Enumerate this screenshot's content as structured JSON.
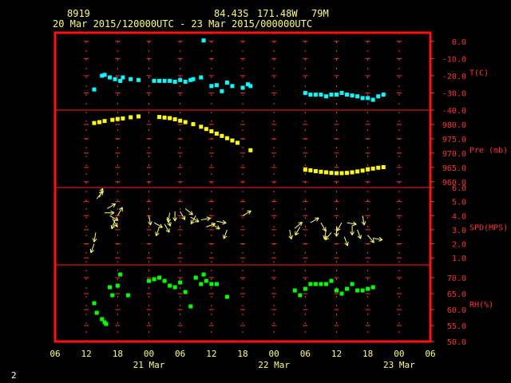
{
  "header": {
    "station": "8919",
    "lat": "84.43S",
    "lon": "171.48W",
    "elev": "79M",
    "range": "20 Mar 2015/120000UTC - 23 Mar 2015/000000UTC"
  },
  "footer": {
    "page_number": "2"
  },
  "chart_data": {
    "type": "scatter",
    "x_unit": "hours since 20 Mar 2015 06 UTC",
    "x_ticks": [
      "06",
      "12",
      "18",
      "00",
      "06",
      "12",
      "18",
      "00",
      "06",
      "12",
      "18",
      "00",
      "06"
    ],
    "x_day_labels": [
      {
        "label": "21 Mar",
        "x": 18
      },
      {
        "label": "22 Mar",
        "x": 42
      },
      {
        "label": "23 Mar",
        "x": 66
      }
    ],
    "xlim": [
      0,
      72
    ],
    "grid": true,
    "panels": [
      {
        "name": "T(C)",
        "label": "T(C)",
        "color": "#00ffff",
        "ylim": [
          -40,
          5
        ],
        "ticks": [
          "0.0",
          "-10.0",
          "-20.0",
          "-30.0",
          "-40.0"
        ],
        "tick_values": [
          0,
          -10,
          -20,
          -30,
          -40
        ],
        "points": [
          [
            7.5,
            -28
          ],
          [
            9,
            -20
          ],
          [
            9.5,
            -19.5
          ],
          [
            10.5,
            -21
          ],
          [
            11.5,
            -22
          ],
          [
            12.5,
            -23
          ],
          [
            13,
            -21
          ],
          [
            14.5,
            -22
          ],
          [
            16,
            -22.5
          ],
          [
            19,
            -23
          ],
          [
            20,
            -23
          ],
          [
            21,
            -23
          ],
          [
            22,
            -23
          ],
          [
            23,
            -23.5
          ],
          [
            24,
            -22.5
          ],
          [
            25,
            -23.5
          ],
          [
            26,
            -22.5
          ],
          [
            26.5,
            -22
          ],
          [
            28,
            -21
          ],
          [
            30,
            -26
          ],
          [
            31,
            -25.5
          ],
          [
            32,
            -29
          ],
          [
            33,
            -24
          ],
          [
            34,
            -26
          ],
          [
            36,
            -27
          ],
          [
            37,
            -25
          ],
          [
            37.5,
            -26
          ],
          [
            48,
            -30
          ],
          [
            49,
            -31
          ],
          [
            50,
            -31
          ],
          [
            51,
            -31
          ],
          [
            52,
            -32
          ],
          [
            53,
            -31
          ],
          [
            54,
            -31
          ],
          [
            55,
            -30
          ],
          [
            56,
            -31
          ],
          [
            57,
            -31.5
          ],
          [
            58,
            -32
          ],
          [
            59,
            -33
          ],
          [
            60,
            -33
          ],
          [
            61,
            -34
          ],
          [
            62,
            -32
          ],
          [
            63,
            -31
          ],
          [
            28.5,
            0.5
          ]
        ]
      },
      {
        "name": "Pre (mb)",
        "label": "Pre (mb)",
        "color": "#ffff00",
        "ylim": [
          958,
          985
        ],
        "ticks": [
          "980.0",
          "975.0",
          "970.0",
          "965.0",
          "960.0"
        ],
        "tick_values": [
          980,
          975,
          970,
          965,
          960
        ],
        "points": [
          [
            7.5,
            980.5
          ],
          [
            8.5,
            980.8
          ],
          [
            9.5,
            981.2
          ],
          [
            11,
            981.6
          ],
          [
            12,
            981.9
          ],
          [
            13,
            982.1
          ],
          [
            14.5,
            982.5
          ],
          [
            16,
            982.8
          ],
          [
            20,
            982.6
          ],
          [
            21,
            982.4
          ],
          [
            22,
            982.2
          ],
          [
            23,
            981.8
          ],
          [
            24,
            981.3
          ],
          [
            25,
            980.8
          ],
          [
            26.5,
            980.1
          ],
          [
            28,
            979.2
          ],
          [
            29,
            978.4
          ],
          [
            30,
            977.6
          ],
          [
            31,
            976.8
          ],
          [
            32,
            976
          ],
          [
            33,
            975.2
          ],
          [
            34,
            974.4
          ],
          [
            35,
            973.6
          ],
          [
            37.5,
            971
          ],
          [
            48,
            964.2
          ],
          [
            49,
            964
          ],
          [
            50,
            963.7
          ],
          [
            51,
            963.5
          ],
          [
            52,
            963.3
          ],
          [
            53,
            963.1
          ],
          [
            54,
            963
          ],
          [
            55,
            963
          ],
          [
            56,
            963.1
          ],
          [
            57,
            963.3
          ],
          [
            58,
            963.6
          ],
          [
            59,
            963.9
          ],
          [
            60,
            964.3
          ],
          [
            61,
            964.6
          ],
          [
            62,
            964.9
          ],
          [
            63,
            965.1
          ]
        ]
      },
      {
        "name": "SPD(MPS)",
        "label": "SPD(MPS)",
        "color": "#ffff66",
        "ylim": [
          0.5,
          6
        ],
        "ticks": [
          "6.0",
          "5.0",
          "4.0",
          "3.0",
          "2.0",
          "1.0"
        ],
        "tick_values": [
          6,
          5,
          4,
          3,
          2,
          1
        ],
        "arrows": [
          [
            7.5,
            2,
            200
          ],
          [
            7.8,
            2.8,
            190
          ],
          [
            8,
            5.2,
            40
          ],
          [
            8.5,
            5.3,
            20
          ],
          [
            9.5,
            4.2,
            90
          ],
          [
            10,
            4.5,
            60
          ],
          [
            10.5,
            4,
            120
          ],
          [
            11,
            3.8,
            150
          ],
          [
            11.5,
            3.7,
            200
          ],
          [
            12,
            4,
            30
          ],
          [
            18,
            4,
            170
          ],
          [
            19,
            3.5,
            120
          ],
          [
            20,
            3.2,
            200
          ],
          [
            21,
            3.4,
            150
          ],
          [
            21.5,
            3.9,
            160
          ],
          [
            22,
            4.2,
            190
          ],
          [
            23,
            4.3,
            180
          ],
          [
            24,
            4.3,
            150
          ],
          [
            25,
            4.5,
            130
          ],
          [
            26,
            3.9,
            120
          ],
          [
            27,
            4,
            210
          ],
          [
            28,
            3.7,
            80
          ],
          [
            29,
            3.2,
            70
          ],
          [
            30,
            3.4,
            120
          ],
          [
            31,
            3.6,
            100
          ],
          [
            33,
            3,
            200
          ],
          [
            36,
            4,
            60
          ],
          [
            45,
            3,
            170
          ],
          [
            46,
            3.1,
            50
          ],
          [
            47,
            3.2,
            210
          ],
          [
            49,
            3.5,
            60
          ],
          [
            51,
            3.5,
            150
          ],
          [
            52,
            3,
            190
          ],
          [
            53,
            2.8,
            220
          ],
          [
            54,
            3.2,
            180
          ],
          [
            55,
            3.5,
            210
          ],
          [
            55.5,
            2.5,
            160
          ],
          [
            56,
            3.5,
            100
          ],
          [
            57,
            3.3,
            180
          ],
          [
            58,
            3,
            160
          ],
          [
            59,
            4,
            170
          ],
          [
            60,
            2.6,
            140
          ],
          [
            61,
            2.4,
            100
          ]
        ]
      },
      {
        "name": "RH(%)",
        "label": "RH(%)",
        "color": "#00ff00",
        "ylim": [
          50,
          74
        ],
        "ticks": [
          "70.0",
          "65.0",
          "60.0",
          "55.0",
          "50.0"
        ],
        "tick_values": [
          70,
          65,
          60,
          55,
          50
        ],
        "points": [
          [
            7.5,
            62
          ],
          [
            8,
            59
          ],
          [
            9,
            57
          ],
          [
            9.5,
            56
          ],
          [
            9.8,
            55.5
          ],
          [
            10.5,
            67
          ],
          [
            11,
            64.5
          ],
          [
            12,
            67.5
          ],
          [
            12.5,
            71
          ],
          [
            14,
            64.5
          ],
          [
            18,
            69
          ],
          [
            19,
            69.5
          ],
          [
            20,
            70
          ],
          [
            21,
            69
          ],
          [
            22,
            67.5
          ],
          [
            23,
            67
          ],
          [
            24,
            68.5
          ],
          [
            25,
            65.5
          ],
          [
            26,
            61
          ],
          [
            27,
            70
          ],
          [
            28,
            68
          ],
          [
            28.5,
            71
          ],
          [
            29,
            69
          ],
          [
            30,
            68
          ],
          [
            31,
            68
          ],
          [
            33,
            64
          ],
          [
            46,
            66
          ],
          [
            47,
            64.5
          ],
          [
            48,
            66.5
          ],
          [
            49,
            68
          ],
          [
            50,
            68
          ],
          [
            51,
            68
          ],
          [
            52,
            68
          ],
          [
            53,
            69
          ],
          [
            54,
            66
          ],
          [
            55,
            65
          ],
          [
            56,
            66.5
          ],
          [
            57,
            68
          ],
          [
            58,
            66
          ],
          [
            59,
            66
          ],
          [
            60,
            66.5
          ],
          [
            61,
            67
          ]
        ]
      }
    ]
  }
}
